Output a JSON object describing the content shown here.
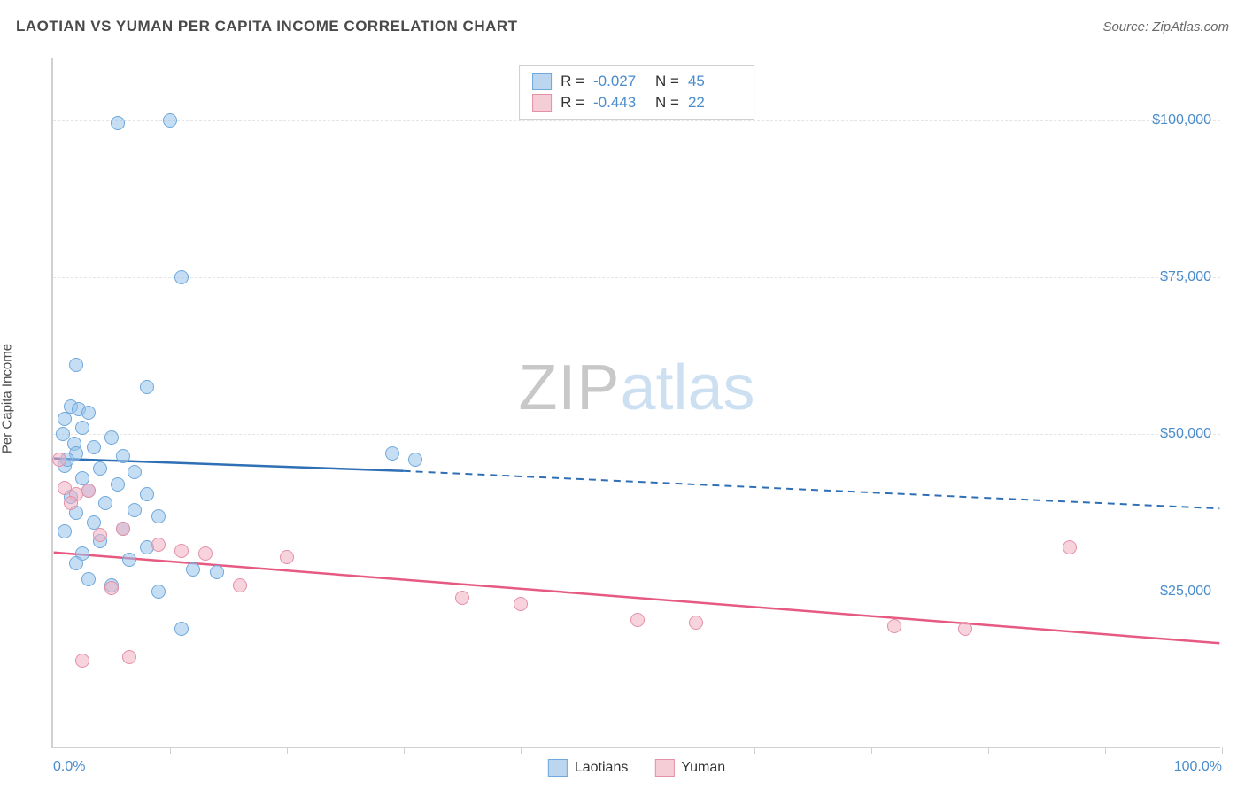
{
  "title": "LAOTIAN VS YUMAN PER CAPITA INCOME CORRELATION CHART",
  "source": "Source: ZipAtlas.com",
  "y_axis_label": "Per Capita Income",
  "watermark": {
    "part1": "ZIP",
    "part2": "atlas"
  },
  "chart": {
    "type": "scatter",
    "xlim": [
      0,
      100
    ],
    "ylim": [
      0,
      110000
    ],
    "x_ticks": [
      0,
      10,
      20,
      30,
      40,
      50,
      60,
      70,
      80,
      90,
      100
    ],
    "x_tick_labels": {
      "0": "0.0%",
      "100": "100.0%"
    },
    "y_gridlines": [
      25000,
      50000,
      75000,
      100000
    ],
    "y_tick_labels": [
      "$25,000",
      "$50,000",
      "$75,000",
      "$100,000"
    ],
    "background_color": "#ffffff",
    "grid_color": "#e5e5e5",
    "axis_color": "#d0d0d0",
    "tick_label_color": "#4a8ccb"
  },
  "stats_box": {
    "rows": [
      {
        "swatch_fill": "#bcd6ef",
        "swatch_border": "#6fa8dc",
        "r_label": "R =",
        "r_value": "-0.027",
        "n_label": "N =",
        "n_value": "45"
      },
      {
        "swatch_fill": "#f4cdd7",
        "swatch_border": "#e490a6",
        "r_label": "R =",
        "r_value": "-0.443",
        "n_label": "N =",
        "n_value": "22"
      }
    ]
  },
  "bottom_legend": [
    {
      "swatch_fill": "#bcd6ef",
      "swatch_border": "#6fa8dc",
      "label": "Laotians"
    },
    {
      "swatch_fill": "#f4cdd7",
      "swatch_border": "#e490a6",
      "label": "Yuman"
    }
  ],
  "series": [
    {
      "name": "Laotians",
      "color_fill": "rgba(150,195,235,0.55)",
      "color_border": "#6fa8dc",
      "marker_radius": 8,
      "trend": {
        "solid": {
          "x1": 0,
          "y1": 46000,
          "x2": 30,
          "y2": 44000
        },
        "dashed": {
          "x1": 30,
          "y1": 44000,
          "x2": 100,
          "y2": 38000
        },
        "color": "#2f6fb5",
        "width": 2.5
      },
      "points": [
        {
          "x": 5.5,
          "y": 99500
        },
        {
          "x": 10,
          "y": 100000
        },
        {
          "x": 11,
          "y": 75000
        },
        {
          "x": 2,
          "y": 61000
        },
        {
          "x": 8,
          "y": 57500
        },
        {
          "x": 1.5,
          "y": 54500
        },
        {
          "x": 2.2,
          "y": 54000
        },
        {
          "x": 3,
          "y": 53500
        },
        {
          "x": 1,
          "y": 52500
        },
        {
          "x": 2.5,
          "y": 51000
        },
        {
          "x": 5,
          "y": 49500
        },
        {
          "x": 1.8,
          "y": 48500
        },
        {
          "x": 3.5,
          "y": 48000
        },
        {
          "x": 2,
          "y": 47000
        },
        {
          "x": 6,
          "y": 46500
        },
        {
          "x": 29,
          "y": 47000
        },
        {
          "x": 31,
          "y": 46000
        },
        {
          "x": 1,
          "y": 45000
        },
        {
          "x": 4,
          "y": 44500
        },
        {
          "x": 7,
          "y": 44000
        },
        {
          "x": 2.5,
          "y": 43000
        },
        {
          "x": 5.5,
          "y": 42000
        },
        {
          "x": 3,
          "y": 41000
        },
        {
          "x": 8,
          "y": 40500
        },
        {
          "x": 1.5,
          "y": 40000
        },
        {
          "x": 4.5,
          "y": 39000
        },
        {
          "x": 7,
          "y": 38000
        },
        {
          "x": 2,
          "y": 37500
        },
        {
          "x": 9,
          "y": 37000
        },
        {
          "x": 3.5,
          "y": 36000
        },
        {
          "x": 6,
          "y": 35000
        },
        {
          "x": 1,
          "y": 34500
        },
        {
          "x": 4,
          "y": 33000
        },
        {
          "x": 8,
          "y": 32000
        },
        {
          "x": 2.5,
          "y": 31000
        },
        {
          "x": 12,
          "y": 28500
        },
        {
          "x": 14,
          "y": 28000
        },
        {
          "x": 3,
          "y": 27000
        },
        {
          "x": 5,
          "y": 26000
        },
        {
          "x": 9,
          "y": 25000
        },
        {
          "x": 11,
          "y": 19000
        },
        {
          "x": 2,
          "y": 29500
        },
        {
          "x": 6.5,
          "y": 30000
        },
        {
          "x": 1.2,
          "y": 46000
        },
        {
          "x": 0.8,
          "y": 50000
        }
      ]
    },
    {
      "name": "Yuman",
      "color_fill": "rgba(240,175,195,0.55)",
      "color_border": "#e490a6",
      "marker_radius": 8,
      "trend": {
        "solid": {
          "x1": 0,
          "y1": 31000,
          "x2": 100,
          "y2": 16500
        },
        "dashed": null,
        "color": "#e65a82",
        "width": 2.5
      },
      "points": [
        {
          "x": 0.5,
          "y": 46000
        },
        {
          "x": 1,
          "y": 41500
        },
        {
          "x": 2,
          "y": 40500
        },
        {
          "x": 3,
          "y": 41000
        },
        {
          "x": 1.5,
          "y": 39000
        },
        {
          "x": 4,
          "y": 34000
        },
        {
          "x": 6,
          "y": 35000
        },
        {
          "x": 9,
          "y": 32500
        },
        {
          "x": 11,
          "y": 31500
        },
        {
          "x": 13,
          "y": 31000
        },
        {
          "x": 20,
          "y": 30500
        },
        {
          "x": 16,
          "y": 26000
        },
        {
          "x": 35,
          "y": 24000
        },
        {
          "x": 40,
          "y": 23000
        },
        {
          "x": 50,
          "y": 20500
        },
        {
          "x": 55,
          "y": 20000
        },
        {
          "x": 72,
          "y": 19500
        },
        {
          "x": 78,
          "y": 19000
        },
        {
          "x": 87,
          "y": 32000
        },
        {
          "x": 2.5,
          "y": 14000
        },
        {
          "x": 6.5,
          "y": 14500
        },
        {
          "x": 5,
          "y": 25500
        }
      ]
    }
  ]
}
